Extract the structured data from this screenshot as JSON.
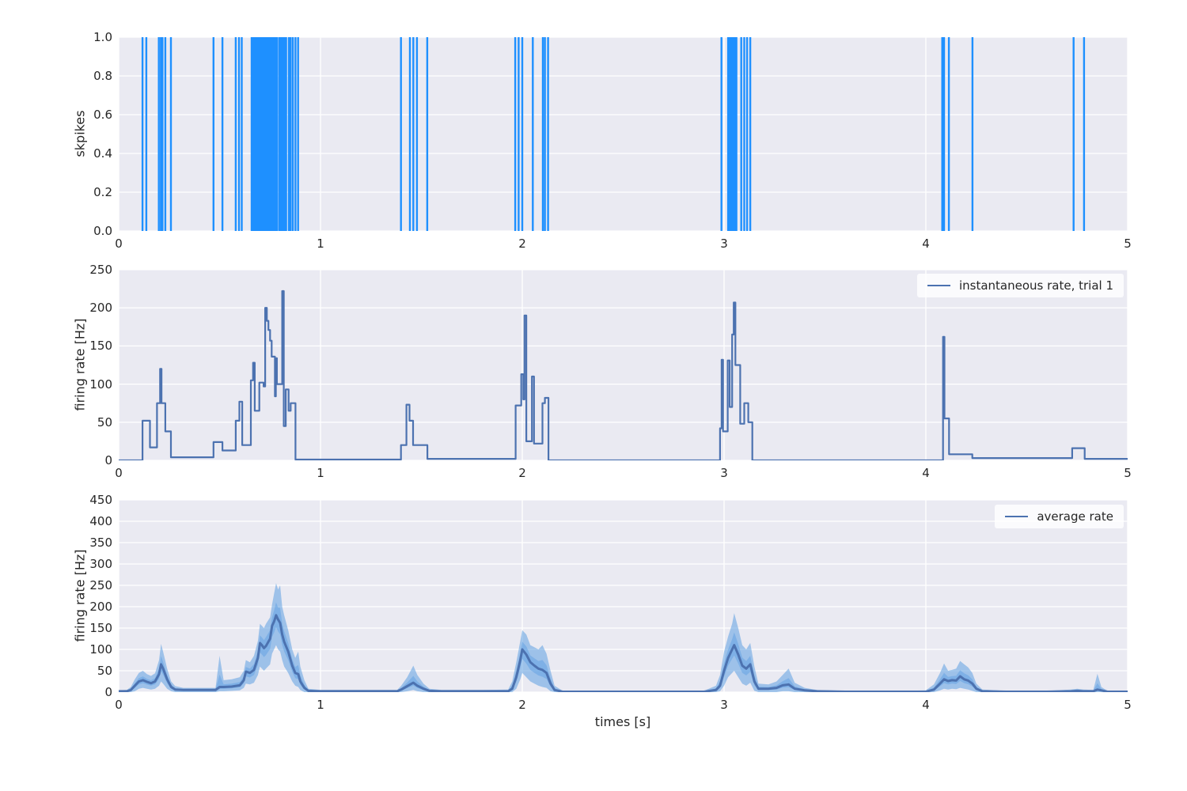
{
  "figure": {
    "background": "#ffffff",
    "panel_background": "#eaeaf2",
    "grid_color": "#ffffff",
    "text_color": "#262626"
  },
  "chart_data": [
    {
      "type": "event-raster",
      "name": "spike-raster-plot",
      "ylabel": "skpikes",
      "xlim": [
        0,
        5
      ],
      "ylim": [
        0,
        1
      ],
      "xticks": [
        0,
        1,
        2,
        3,
        4,
        5
      ],
      "xtick_labels": [
        "0",
        "1",
        "2",
        "3",
        "4",
        "5"
      ],
      "yticks": [
        0,
        0.2,
        0.4,
        0.6,
        0.8,
        1.0
      ],
      "ytick_labels": [
        "0.0",
        "0.2",
        "0.4",
        "0.6",
        "0.8",
        "1.0"
      ],
      "grid": true,
      "line_color": "#1e90ff",
      "spike_times": [
        0.118,
        0.137,
        0.199,
        0.209,
        0.217,
        0.231,
        0.259,
        0.47,
        0.514,
        0.58,
        0.596,
        0.61,
        0.659,
        0.664,
        0.67,
        0.676,
        0.682,
        0.69,
        0.697,
        0.702,
        0.706,
        0.71,
        0.715,
        0.722,
        0.726,
        0.73,
        0.734,
        0.738,
        0.742,
        0.746,
        0.75,
        0.754,
        0.758,
        0.762,
        0.766,
        0.77,
        0.774,
        0.778,
        0.784,
        0.795,
        0.804,
        0.809,
        0.814,
        0.819,
        0.824,
        0.83,
        0.843,
        0.852,
        0.863,
        0.876,
        0.889,
        1.399,
        1.443,
        1.46,
        1.478,
        1.529,
        1.965,
        1.982,
        2.0,
        2.052,
        2.102,
        2.112,
        2.128,
        2.987,
        3.02,
        3.028,
        3.036,
        3.044,
        3.052,
        3.061,
        3.085,
        3.1,
        3.114,
        3.13,
        4.081,
        4.09,
        4.114,
        4.231,
        4.732,
        4.784
      ]
    },
    {
      "type": "step-line",
      "name": "instantaneous-rate-plot",
      "legend": "instantaneous rate, trial 1",
      "ylabel": "firing rate [Hz]",
      "xlim": [
        0,
        5
      ],
      "ylim": [
        0,
        250
      ],
      "xticks": [
        0,
        1,
        2,
        3,
        4,
        5
      ],
      "xtick_labels": [
        "0",
        "1",
        "2",
        "3",
        "4",
        "5"
      ],
      "yticks": [
        0,
        50,
        100,
        150,
        200,
        250
      ],
      "ytick_labels": [
        "0",
        "50",
        "100",
        "150",
        "200",
        "250"
      ],
      "grid": true,
      "legend_position": "upper right",
      "line_color": "#4c72b0",
      "steps": [
        [
          0.0,
          0
        ],
        [
          0.118,
          52
        ],
        [
          0.155,
          17
        ],
        [
          0.19,
          75
        ],
        [
          0.205,
          120
        ],
        [
          0.212,
          75
        ],
        [
          0.231,
          38
        ],
        [
          0.259,
          4
        ],
        [
          0.47,
          24
        ],
        [
          0.514,
          13
        ],
        [
          0.58,
          52
        ],
        [
          0.598,
          77
        ],
        [
          0.612,
          20
        ],
        [
          0.655,
          105
        ],
        [
          0.666,
          128
        ],
        [
          0.674,
          65
        ],
        [
          0.697,
          102
        ],
        [
          0.718,
          97
        ],
        [
          0.726,
          200
        ],
        [
          0.734,
          183
        ],
        [
          0.742,
          171
        ],
        [
          0.75,
          157
        ],
        [
          0.758,
          136
        ],
        [
          0.774,
          84
        ],
        [
          0.779,
          134
        ],
        [
          0.784,
          100
        ],
        [
          0.81,
          222
        ],
        [
          0.818,
          45
        ],
        [
          0.828,
          93
        ],
        [
          0.842,
          65
        ],
        [
          0.852,
          75
        ],
        [
          0.876,
          1
        ],
        [
          1.399,
          20
        ],
        [
          1.426,
          73
        ],
        [
          1.441,
          52
        ],
        [
          1.459,
          20
        ],
        [
          1.53,
          2
        ],
        [
          1.967,
          72
        ],
        [
          1.995,
          113
        ],
        [
          2.005,
          80
        ],
        [
          2.011,
          190
        ],
        [
          2.02,
          25
        ],
        [
          2.048,
          110
        ],
        [
          2.058,
          22
        ],
        [
          2.1,
          75
        ],
        [
          2.112,
          82
        ],
        [
          2.13,
          0
        ],
        [
          2.98,
          42
        ],
        [
          2.988,
          132
        ],
        [
          2.995,
          38
        ],
        [
          3.018,
          131
        ],
        [
          3.028,
          70
        ],
        [
          3.04,
          165
        ],
        [
          3.048,
          207
        ],
        [
          3.056,
          125
        ],
        [
          3.08,
          48
        ],
        [
          3.1,
          75
        ],
        [
          3.12,
          50
        ],
        [
          3.14,
          0
        ],
        [
          4.085,
          162
        ],
        [
          4.092,
          55
        ],
        [
          4.115,
          8
        ],
        [
          4.23,
          3
        ],
        [
          4.725,
          16
        ],
        [
          4.787,
          2
        ]
      ]
    },
    {
      "type": "line-band",
      "name": "average-rate-plot",
      "legend": "average rate",
      "ylabel": "firing rate [Hz]",
      "xlabel": "times [s]",
      "xlim": [
        0,
        5
      ],
      "ylim": [
        0,
        450
      ],
      "xticks": [
        0,
        1,
        2,
        3,
        4,
        5
      ],
      "xtick_labels": [
        "0",
        "1",
        "2",
        "3",
        "4",
        "5"
      ],
      "yticks": [
        0,
        50,
        100,
        150,
        200,
        250,
        300,
        350,
        400,
        450
      ],
      "ytick_labels": [
        "0",
        "50",
        "100",
        "150",
        "200",
        "250",
        "300",
        "350",
        "400",
        "450"
      ],
      "grid": true,
      "legend_position": "upper right",
      "line_color": "#4c72b0",
      "band_color": "#4f97e0",
      "x": [
        0.0,
        0.04,
        0.06,
        0.08,
        0.1,
        0.12,
        0.14,
        0.16,
        0.18,
        0.2,
        0.21,
        0.22,
        0.24,
        0.26,
        0.28,
        0.32,
        0.4,
        0.48,
        0.5,
        0.52,
        0.56,
        0.6,
        0.62,
        0.63,
        0.65,
        0.67,
        0.69,
        0.7,
        0.71,
        0.72,
        0.73,
        0.75,
        0.76,
        0.77,
        0.78,
        0.79,
        0.8,
        0.81,
        0.82,
        0.84,
        0.86,
        0.875,
        0.89,
        0.9,
        0.92,
        0.94,
        1.0,
        1.2,
        1.38,
        1.4,
        1.43,
        1.46,
        1.48,
        1.51,
        1.54,
        1.6,
        1.8,
        1.93,
        1.95,
        1.97,
        1.99,
        2.0,
        2.02,
        2.04,
        2.06,
        2.08,
        2.1,
        2.12,
        2.14,
        2.16,
        2.2,
        2.5,
        2.9,
        2.96,
        2.98,
        3.0,
        3.02,
        3.04,
        3.05,
        3.07,
        3.09,
        3.11,
        3.13,
        3.15,
        3.17,
        3.22,
        3.26,
        3.29,
        3.32,
        3.35,
        3.4,
        3.46,
        3.6,
        3.9,
        4.0,
        4.04,
        4.07,
        4.09,
        4.11,
        4.13,
        4.15,
        4.17,
        4.19,
        4.21,
        4.23,
        4.25,
        4.28,
        4.4,
        4.6,
        4.72,
        4.75,
        4.78,
        4.83,
        4.85,
        4.87,
        4.9,
        5.0
      ],
      "mean": [
        2,
        2,
        5,
        15,
        25,
        28,
        24,
        21,
        25,
        42,
        65,
        55,
        30,
        12,
        6,
        5,
        5,
        5,
        12,
        12,
        13,
        16,
        28,
        48,
        45,
        52,
        80,
        115,
        110,
        103,
        108,
        125,
        155,
        165,
        180,
        170,
        162,
        135,
        118,
        95,
        62,
        45,
        42,
        25,
        10,
        3,
        2,
        2,
        2,
        6,
        14,
        22,
        15,
        8,
        3,
        2,
        2,
        2,
        8,
        35,
        75,
        100,
        88,
        70,
        62,
        55,
        52,
        45,
        20,
        5,
        1,
        1,
        1,
        5,
        15,
        50,
        80,
        100,
        110,
        88,
        62,
        55,
        65,
        25,
        8,
        8,
        10,
        16,
        18,
        8,
        4,
        2,
        1,
        1,
        1,
        6,
        20,
        30,
        26,
        28,
        27,
        37,
        30,
        27,
        20,
        8,
        2,
        1,
        1,
        2,
        3,
        2,
        2,
        6,
        4,
        1,
        1
      ],
      "lower": [
        0,
        0,
        0,
        2,
        8,
        10,
        8,
        6,
        8,
        15,
        25,
        20,
        8,
        2,
        0,
        0,
        0,
        0,
        2,
        2,
        3,
        4,
        10,
        20,
        18,
        22,
        40,
        60,
        55,
        50,
        55,
        65,
        90,
        100,
        110,
        100,
        95,
        75,
        60,
        45,
        25,
        15,
        12,
        5,
        0,
        0,
        0,
        0,
        0,
        0,
        2,
        5,
        2,
        0,
        0,
        0,
        0,
        0,
        0,
        8,
        30,
        45,
        35,
        25,
        20,
        15,
        12,
        10,
        2,
        0,
        0,
        0,
        0,
        0,
        2,
        15,
        35,
        45,
        50,
        35,
        20,
        15,
        22,
        3,
        0,
        0,
        0,
        2,
        2,
        0,
        0,
        0,
        0,
        0,
        0,
        0,
        4,
        8,
        6,
        8,
        7,
        10,
        8,
        6,
        3,
        0,
        0,
        0,
        0,
        0,
        0,
        0,
        0,
        0,
        0,
        0,
        0
      ],
      "upper": [
        4,
        5,
        12,
        30,
        45,
        50,
        42,
        38,
        44,
        75,
        113,
        95,
        55,
        25,
        14,
        10,
        10,
        10,
        85,
        28,
        30,
        35,
        50,
        75,
        70,
        85,
        120,
        160,
        155,
        150,
        160,
        175,
        205,
        230,
        255,
        240,
        250,
        200,
        180,
        145,
        100,
        80,
        95,
        60,
        28,
        8,
        5,
        5,
        5,
        15,
        35,
        62,
        40,
        20,
        8,
        5,
        5,
        6,
        25,
        70,
        120,
        145,
        135,
        110,
        105,
        100,
        110,
        90,
        50,
        15,
        3,
        3,
        3,
        15,
        40,
        95,
        130,
        160,
        185,
        150,
        110,
        100,
        115,
        60,
        20,
        18,
        25,
        40,
        55,
        22,
        10,
        5,
        3,
        3,
        4,
        18,
        45,
        67,
        50,
        52,
        55,
        73,
        65,
        58,
        45,
        20,
        6,
        3,
        3,
        6,
        8,
        6,
        5,
        43,
        12,
        3,
        3
      ]
    }
  ]
}
